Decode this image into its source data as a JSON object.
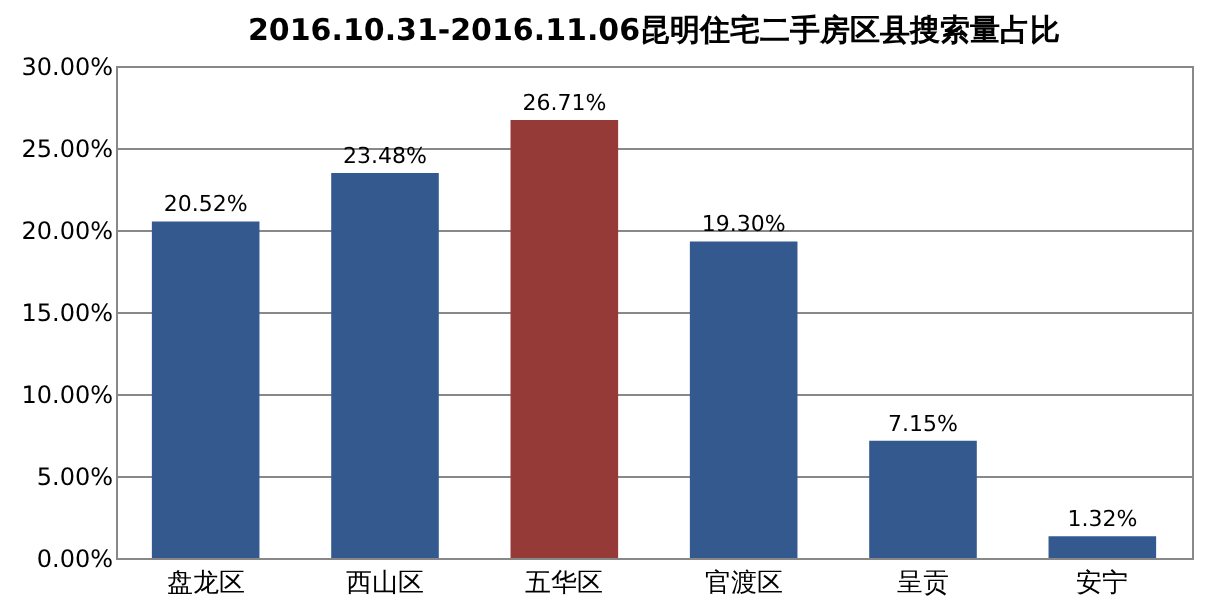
{
  "chart_data": {
    "type": "bar",
    "title": "2016.10.31-2016.11.06昆明住宅二手房区县搜索量占比",
    "categories": [
      "盘龙区",
      "西山区",
      "五华区",
      "官渡区",
      "呈贡",
      "安宁"
    ],
    "values": [
      20.52,
      23.48,
      26.71,
      19.3,
      7.15,
      1.32
    ],
    "colors": [
      "#34598f",
      "#34598f",
      "#963a38",
      "#34598f",
      "#34598f",
      "#34598f"
    ],
    "value_labels": [
      "20.52%",
      "23.48%",
      "26.71%",
      "19.30%",
      "7.15%",
      "1.32%"
    ],
    "ylim": [
      0,
      30
    ],
    "yticks": [
      {
        "value": 0,
        "label": "0.00%"
      },
      {
        "value": 5,
        "label": "5.00%"
      },
      {
        "value": 10,
        "label": "10.00%"
      },
      {
        "value": 15,
        "label": "15.00%"
      },
      {
        "value": 20,
        "label": "20.00%"
      },
      {
        "value": 25,
        "label": "25.00%"
      },
      {
        "value": 30,
        "label": "30.00%"
      }
    ],
    "grid": "y"
  }
}
